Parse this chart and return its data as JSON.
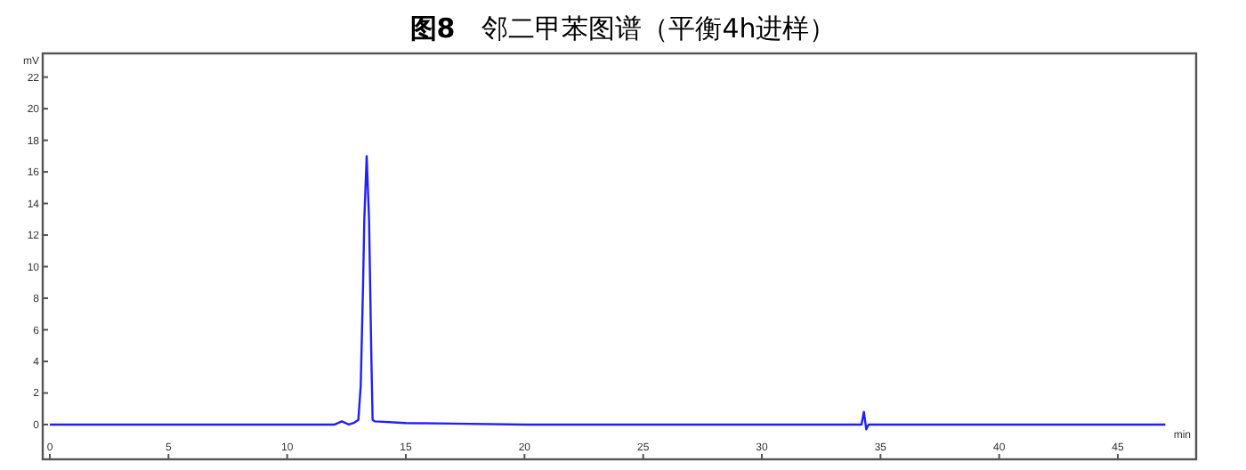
{
  "chart_data": {
    "type": "line",
    "title": "**图8**　邻二甲苯图谱（平衡4h进样）",
    "xlabel": "min",
    "ylabel": "mV",
    "xlim": [
      -0.3,
      48.3
    ],
    "ylim": [
      -2.2,
      23.5
    ],
    "xticks": [
      0,
      5,
      10,
      15,
      20,
      25,
      30,
      35,
      40,
      45
    ],
    "yticks": [
      0,
      2,
      4,
      6,
      8,
      10,
      12,
      14,
      16,
      18,
      20,
      22
    ],
    "series": [
      {
        "color": "#1f1fff",
        "x": [
          0,
          5,
          10,
          12,
          12.3,
          12.6,
          12.8,
          13.0,
          13.1,
          13.2,
          13.25,
          13.35,
          13.45,
          13.55,
          13.6,
          13.7,
          15,
          20,
          30,
          34.2,
          34.3,
          34.4,
          34.5,
          40,
          47
        ],
        "values": [
          0,
          0,
          0,
          0,
          0.2,
          0,
          0.1,
          0.3,
          2.5,
          9,
          13,
          17,
          13,
          4,
          0.3,
          0.2,
          0.1,
          0,
          0,
          0,
          0.8,
          -0.3,
          0,
          0,
          0
        ]
      }
    ]
  }
}
